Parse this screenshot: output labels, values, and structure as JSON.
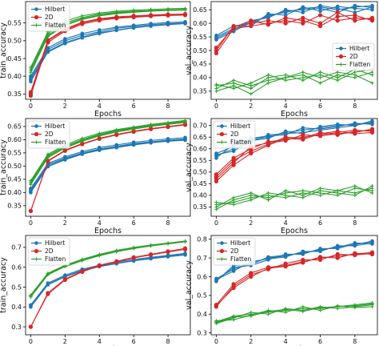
{
  "colors": {
    "Hilbert": "#1f77b4",
    "2D": "#d62728",
    "Flatten": "#2ca02c"
  },
  "chart_data": [
    {
      "type": "line",
      "panel": "row1-left",
      "xlabel": "Epochs",
      "ylabel": "train_accuracy",
      "xlim": [
        -0.3,
        9.3
      ],
      "ylim": [
        0.335,
        0.61
      ],
      "xticks": [
        0,
        2,
        4,
        6,
        8
      ],
      "yticks": [
        0.35,
        0.4,
        0.45,
        0.5,
        0.55
      ],
      "legend": "top-left",
      "x": [
        0,
        1,
        2,
        3,
        4,
        5,
        6,
        7,
        8,
        9
      ],
      "series": [
        {
          "name": "Hilbert",
          "runs": [
            [
              0.395,
              0.475,
              0.5,
              0.515,
              0.525,
              0.535,
              0.54,
              0.545,
              0.548,
              0.55
            ],
            [
              0.39,
              0.47,
              0.495,
              0.51,
              0.522,
              0.53,
              0.537,
              0.542,
              0.546,
              0.549
            ],
            [
              0.4,
              0.48,
              0.505,
              0.52,
              0.53,
              0.538,
              0.543,
              0.548,
              0.551,
              0.553
            ],
            [
              0.385,
              0.468,
              0.492,
              0.508,
              0.52,
              0.529,
              0.536,
              0.541,
              0.545,
              0.548
            ]
          ]
        },
        {
          "name": "2D",
          "runs": [
            [
              0.35,
              0.5,
              0.53,
              0.55,
              0.56,
              0.565,
              0.568,
              0.57,
              0.572,
              0.573
            ],
            [
              0.345,
              0.495,
              0.527,
              0.547,
              0.557,
              0.563,
              0.566,
              0.569,
              0.571,
              0.572
            ],
            [
              0.355,
              0.502,
              0.533,
              0.552,
              0.562,
              0.567,
              0.57,
              0.572,
              0.574,
              0.575
            ]
          ]
        },
        {
          "name": "Flatten",
          "runs": [
            [
              0.42,
              0.52,
              0.55,
              0.565,
              0.575,
              0.58,
              0.583,
              0.585,
              0.587,
              0.588
            ],
            [
              0.415,
              0.515,
              0.546,
              0.562,
              0.572,
              0.578,
              0.581,
              0.584,
              0.586,
              0.587
            ],
            [
              0.41,
              0.512,
              0.543,
              0.56,
              0.57,
              0.576,
              0.58,
              0.583,
              0.585,
              0.586
            ],
            [
              0.425,
              0.525,
              0.555,
              0.57,
              0.578,
              0.583,
              0.586,
              0.588,
              0.59,
              0.591
            ]
          ]
        }
      ]
    },
    {
      "type": "line",
      "panel": "row1-right",
      "xlabel": "Epochs",
      "ylabel": "val_accuracy",
      "xlim": [
        -0.3,
        9.3
      ],
      "ylim": [
        0.32,
        0.68
      ],
      "xticks": [
        0,
        2,
        4,
        6,
        8
      ],
      "yticks": [
        0.35,
        0.4,
        0.45,
        0.5,
        0.55,
        0.6,
        0.65
      ],
      "legend": "center-right",
      "x": [
        0,
        1,
        2,
        3,
        4,
        5,
        6,
        7,
        8,
        9
      ],
      "series": [
        {
          "name": "Hilbert",
          "runs": [
            [
              0.55,
              0.58,
              0.6,
              0.63,
              0.64,
              0.655,
              0.66,
              0.65,
              0.66,
              0.665
            ],
            [
              0.545,
              0.575,
              0.61,
              0.62,
              0.65,
              0.64,
              0.665,
              0.655,
              0.64,
              0.66
            ],
            [
              0.555,
              0.59,
              0.59,
              0.635,
              0.63,
              0.66,
              0.645,
              0.662,
              0.655,
              0.65
            ],
            [
              0.54,
              0.57,
              0.605,
              0.625,
              0.645,
              0.65,
              0.655,
              0.64,
              0.665,
              0.658
            ]
          ]
        },
        {
          "name": "2D",
          "runs": [
            [
              0.5,
              0.59,
              0.6,
              0.61,
              0.6,
              0.62,
              0.6,
              0.64,
              0.61,
              0.62
            ],
            [
              0.49,
              0.58,
              0.59,
              0.6,
              0.61,
              0.6,
              0.63,
              0.61,
              0.62,
              0.615
            ],
            [
              0.51,
              0.585,
              0.61,
              0.595,
              0.62,
              0.61,
              0.59,
              0.625,
              0.63,
              0.61
            ]
          ]
        },
        {
          "name": "Flatten",
          "runs": [
            [
              0.37,
              0.38,
              0.36,
              0.4,
              0.41,
              0.39,
              0.42,
              0.4,
              0.43,
              0.41
            ],
            [
              0.36,
              0.39,
              0.37,
              0.39,
              0.4,
              0.41,
              0.38,
              0.41,
              0.4,
              0.42
            ],
            [
              0.35,
              0.37,
              0.34,
              0.38,
              0.4,
              0.42,
              0.4,
              0.42,
              0.41,
              0.38
            ],
            [
              0.375,
              0.36,
              0.38,
              0.41,
              0.39,
              0.4,
              0.41,
              0.39,
              0.42,
              0.43
            ]
          ]
        }
      ]
    },
    {
      "type": "line",
      "panel": "row2-left",
      "xlabel": "Epochs",
      "ylabel": "train_accuracy",
      "xlim": [
        -0.3,
        9.3
      ],
      "ylim": [
        0.31,
        0.68
      ],
      "xticks": [
        0,
        2,
        4,
        6,
        8
      ],
      "yticks": [
        0.35,
        0.4,
        0.45,
        0.5,
        0.55,
        0.6,
        0.65
      ],
      "legend": "top-left",
      "x": [
        0,
        1,
        2,
        3,
        4,
        5,
        6,
        7,
        8,
        9
      ],
      "series": [
        {
          "name": "Hilbert",
          "runs": [
            [
              0.41,
              0.505,
              0.53,
              0.55,
              0.565,
              0.575,
              0.585,
              0.592,
              0.598,
              0.603
            ],
            [
              0.405,
              0.5,
              0.527,
              0.547,
              0.562,
              0.572,
              0.582,
              0.59,
              0.596,
              0.6
            ],
            [
              0.415,
              0.51,
              0.535,
              0.555,
              0.57,
              0.58,
              0.59,
              0.597,
              0.603,
              0.608
            ],
            [
              0.4,
              0.498,
              0.524,
              0.545,
              0.56,
              0.57,
              0.58,
              0.588,
              0.594,
              0.598
            ]
          ]
        },
        {
          "name": "2D",
          "runs": [
            [
              0.33,
              0.52,
              0.56,
              0.585,
              0.605,
              0.62,
              0.632,
              0.642,
              0.65,
              0.658
            ],
            [
              0.33,
              0.518,
              0.558,
              0.583,
              0.603,
              0.618,
              0.63,
              0.64,
              0.648,
              0.656
            ]
          ]
        },
        {
          "name": "Flatten",
          "runs": [
            [
              0.44,
              0.54,
              0.575,
              0.6,
              0.62,
              0.635,
              0.645,
              0.655,
              0.662,
              0.67
            ],
            [
              0.435,
              0.536,
              0.572,
              0.597,
              0.617,
              0.632,
              0.643,
              0.653,
              0.66,
              0.667
            ],
            [
              0.43,
              0.532,
              0.568,
              0.594,
              0.614,
              0.629,
              0.64,
              0.65,
              0.658,
              0.665
            ],
            [
              0.445,
              0.545,
              0.58,
              0.605,
              0.624,
              0.638,
              0.648,
              0.658,
              0.665,
              0.673
            ]
          ]
        }
      ]
    },
    {
      "type": "line",
      "panel": "row2-right",
      "xlabel": "Epochs",
      "ylabel": "val_accuracy",
      "xlim": [
        -0.3,
        9.3
      ],
      "ylim": [
        0.31,
        0.73
      ],
      "xticks": [
        0,
        2,
        4,
        6,
        8
      ],
      "yticks": [
        0.35,
        0.4,
        0.45,
        0.5,
        0.55,
        0.6,
        0.65,
        0.7
      ],
      "legend": "top-left",
      "x": [
        0,
        1,
        2,
        3,
        4,
        5,
        6,
        7,
        8,
        9
      ],
      "series": [
        {
          "name": "Hilbert",
          "runs": [
            [
              0.58,
              0.61,
              0.64,
              0.65,
              0.67,
              0.68,
              0.69,
              0.7,
              0.705,
              0.71
            ],
            [
              0.57,
              0.6,
              0.63,
              0.66,
              0.665,
              0.67,
              0.68,
              0.69,
              0.7,
              0.715
            ],
            [
              0.56,
              0.62,
              0.645,
              0.655,
              0.66,
              0.69,
              0.685,
              0.695,
              0.71,
              0.705
            ],
            [
              0.575,
              0.59,
              0.635,
              0.645,
              0.675,
              0.665,
              0.695,
              0.705,
              0.7,
              0.72
            ]
          ]
        },
        {
          "name": "2D",
          "runs": [
            [
              0.49,
              0.56,
              0.6,
              0.63,
              0.64,
              0.65,
              0.66,
              0.67,
              0.68,
              0.675
            ],
            [
              0.48,
              0.55,
              0.59,
              0.62,
              0.65,
              0.645,
              0.67,
              0.66,
              0.675,
              0.68
            ],
            [
              0.47,
              0.54,
              0.61,
              0.625,
              0.635,
              0.66,
              0.655,
              0.665,
              0.67,
              0.685
            ],
            [
              0.46,
              0.53,
              0.58,
              0.615,
              0.645,
              0.64,
              0.665,
              0.675,
              0.665,
              0.67
            ]
          ]
        },
        {
          "name": "Flatten",
          "runs": [
            [
              0.36,
              0.37,
              0.39,
              0.4,
              0.39,
              0.41,
              0.4,
              0.42,
              0.41,
              0.43
            ],
            [
              0.34,
              0.38,
              0.4,
              0.39,
              0.41,
              0.42,
              0.41,
              0.4,
              0.43,
              0.42
            ],
            [
              0.37,
              0.36,
              0.38,
              0.41,
              0.4,
              0.39,
              0.42,
              0.41,
              0.4,
              0.44
            ],
            [
              0.35,
              0.39,
              0.41,
              0.38,
              0.42,
              0.4,
              0.43,
              0.42,
              0.44,
              0.41
            ]
          ]
        }
      ]
    },
    {
      "type": "line",
      "panel": "row3-left",
      "xlabel": "Epochs",
      "ylabel": "train_accuracy",
      "xlim": [
        -0.3,
        9.3
      ],
      "ylim": [
        0.26,
        0.76
      ],
      "xticks": [
        0,
        2,
        4,
        6,
        8
      ],
      "yticks": [
        0.3,
        0.4,
        0.5,
        0.6,
        0.7
      ],
      "legend": "top-left",
      "x": [
        0,
        1,
        2,
        3,
        4,
        5,
        6,
        7,
        8,
        9
      ],
      "series": [
        {
          "name": "Hilbert",
          "runs": [
            [
              0.41,
              0.52,
              0.56,
              0.59,
              0.61,
              0.625,
              0.64,
              0.65,
              0.66,
              0.67
            ],
            [
              0.405,
              0.515,
              0.555,
              0.585,
              0.606,
              0.62,
              0.635,
              0.646,
              0.656,
              0.665
            ],
            [
              0.4,
              0.512,
              0.552,
              0.582,
              0.603,
              0.618,
              0.632,
              0.643,
              0.653,
              0.662
            ]
          ]
        },
        {
          "name": "2D",
          "runs": [
            [
              0.3,
              0.47,
              0.54,
              0.58,
              0.61,
              0.63,
              0.65,
              0.665,
              0.68,
              0.695
            ],
            [
              0.3,
              0.465,
              0.536,
              0.577,
              0.607,
              0.627,
              0.647,
              0.662,
              0.677,
              0.69
            ]
          ]
        },
        {
          "name": "Flatten",
          "runs": [
            [
              0.46,
              0.57,
              0.61,
              0.64,
              0.665,
              0.685,
              0.7,
              0.712,
              0.722,
              0.732
            ],
            [
              0.455,
              0.566,
              0.607,
              0.637,
              0.662,
              0.682,
              0.697,
              0.71,
              0.72,
              0.73
            ],
            [
              0.45,
              0.562,
              0.603,
              0.633,
              0.658,
              0.678,
              0.694,
              0.707,
              0.718,
              0.728
            ]
          ]
        }
      ]
    },
    {
      "type": "line",
      "panel": "row3-right",
      "xlabel": "Epochs",
      "ylabel": "val_accuracy",
      "xlim": [
        -0.3,
        9.3
      ],
      "ylim": [
        0.29,
        0.82
      ],
      "xticks": [
        0,
        2,
        4,
        6,
        8
      ],
      "yticks": [
        0.3,
        0.4,
        0.5,
        0.6,
        0.7,
        0.8
      ],
      "legend": "top-left",
      "x": [
        0,
        1,
        2,
        3,
        4,
        5,
        6,
        7,
        8,
        9
      ],
      "series": [
        {
          "name": "Hilbert",
          "runs": [
            [
              0.59,
              0.64,
              0.67,
              0.7,
              0.71,
              0.73,
              0.74,
              0.76,
              0.77,
              0.79
            ],
            [
              0.58,
              0.65,
              0.66,
              0.69,
              0.72,
              0.72,
              0.75,
              0.75,
              0.775,
              0.785
            ],
            [
              0.585,
              0.63,
              0.68,
              0.695,
              0.705,
              0.735,
              0.735,
              0.765,
              0.765,
              0.78
            ],
            [
              0.575,
              0.66,
              0.665,
              0.705,
              0.715,
              0.725,
              0.745,
              0.755,
              0.78,
              0.775
            ]
          ]
        },
        {
          "name": "2D",
          "runs": [
            [
              0.45,
              0.56,
              0.62,
              0.65,
              0.66,
              0.68,
              0.7,
              0.71,
              0.72,
              0.73
            ],
            [
              0.44,
              0.55,
              0.61,
              0.64,
              0.67,
              0.69,
              0.69,
              0.72,
              0.715,
              0.725
            ],
            [
              0.445,
              0.54,
              0.6,
              0.645,
              0.655,
              0.675,
              0.705,
              0.7,
              0.725,
              0.72
            ]
          ]
        },
        {
          "name": "Flatten",
          "runs": [
            [
              0.36,
              0.39,
              0.4,
              0.41,
              0.42,
              0.43,
              0.43,
              0.44,
              0.45,
              0.46
            ],
            [
              0.35,
              0.38,
              0.41,
              0.4,
              0.43,
              0.42,
              0.44,
              0.43,
              0.44,
              0.45
            ],
            [
              0.365,
              0.37,
              0.395,
              0.42,
              0.41,
              0.44,
              0.42,
              0.445,
              0.435,
              0.44
            ],
            [
              0.355,
              0.385,
              0.39,
              0.415,
              0.425,
              0.415,
              0.435,
              0.44,
              0.445,
              0.455
            ]
          ]
        }
      ]
    }
  ]
}
